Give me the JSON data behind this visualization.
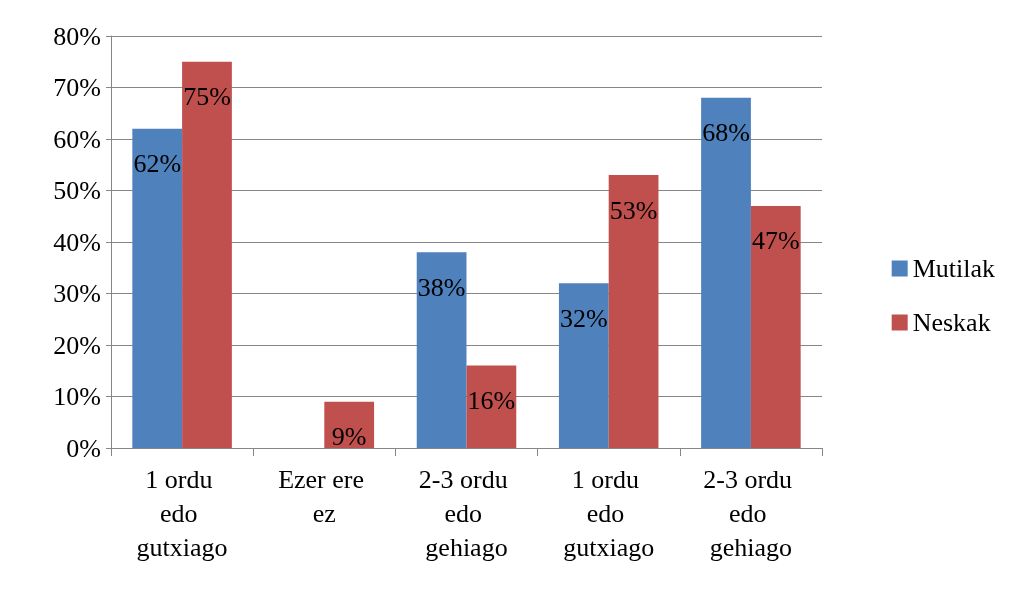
{
  "chart_data": {
    "type": "bar",
    "categories": [
      "1 ordu edo gutxiago",
      "Ezer ere ez",
      "2-3 ordu edo gehiago",
      "1 ordu edo gutxiago",
      "2-3 ordu edo gehiago"
    ],
    "series": [
      {
        "name": "Mutilak",
        "color": "#4f81bd",
        "values": [
          62,
          null,
          38,
          32,
          68
        ],
        "value_labels": [
          "62%",
          null,
          "38%",
          "32%",
          "68%"
        ]
      },
      {
        "name": "Neskak",
        "color": "#c0504d",
        "values": [
          75,
          9,
          16,
          53,
          47
        ],
        "value_labels": [
          "75%",
          "9%",
          "16%",
          "53%",
          "47%"
        ]
      }
    ],
    "ylim": [
      0,
      80
    ],
    "yticks": [
      {
        "value": 0,
        "label": "0%"
      },
      {
        "value": 10,
        "label": "10%"
      },
      {
        "value": 20,
        "label": "20%"
      },
      {
        "value": 30,
        "label": "30%"
      },
      {
        "value": 40,
        "label": "40%"
      },
      {
        "value": 50,
        "label": "50%"
      },
      {
        "value": 60,
        "label": "60%"
      },
      {
        "value": 70,
        "label": "70%"
      },
      {
        "value": 80,
        "label": "80%"
      }
    ],
    "grid": "y",
    "legend": "right"
  }
}
